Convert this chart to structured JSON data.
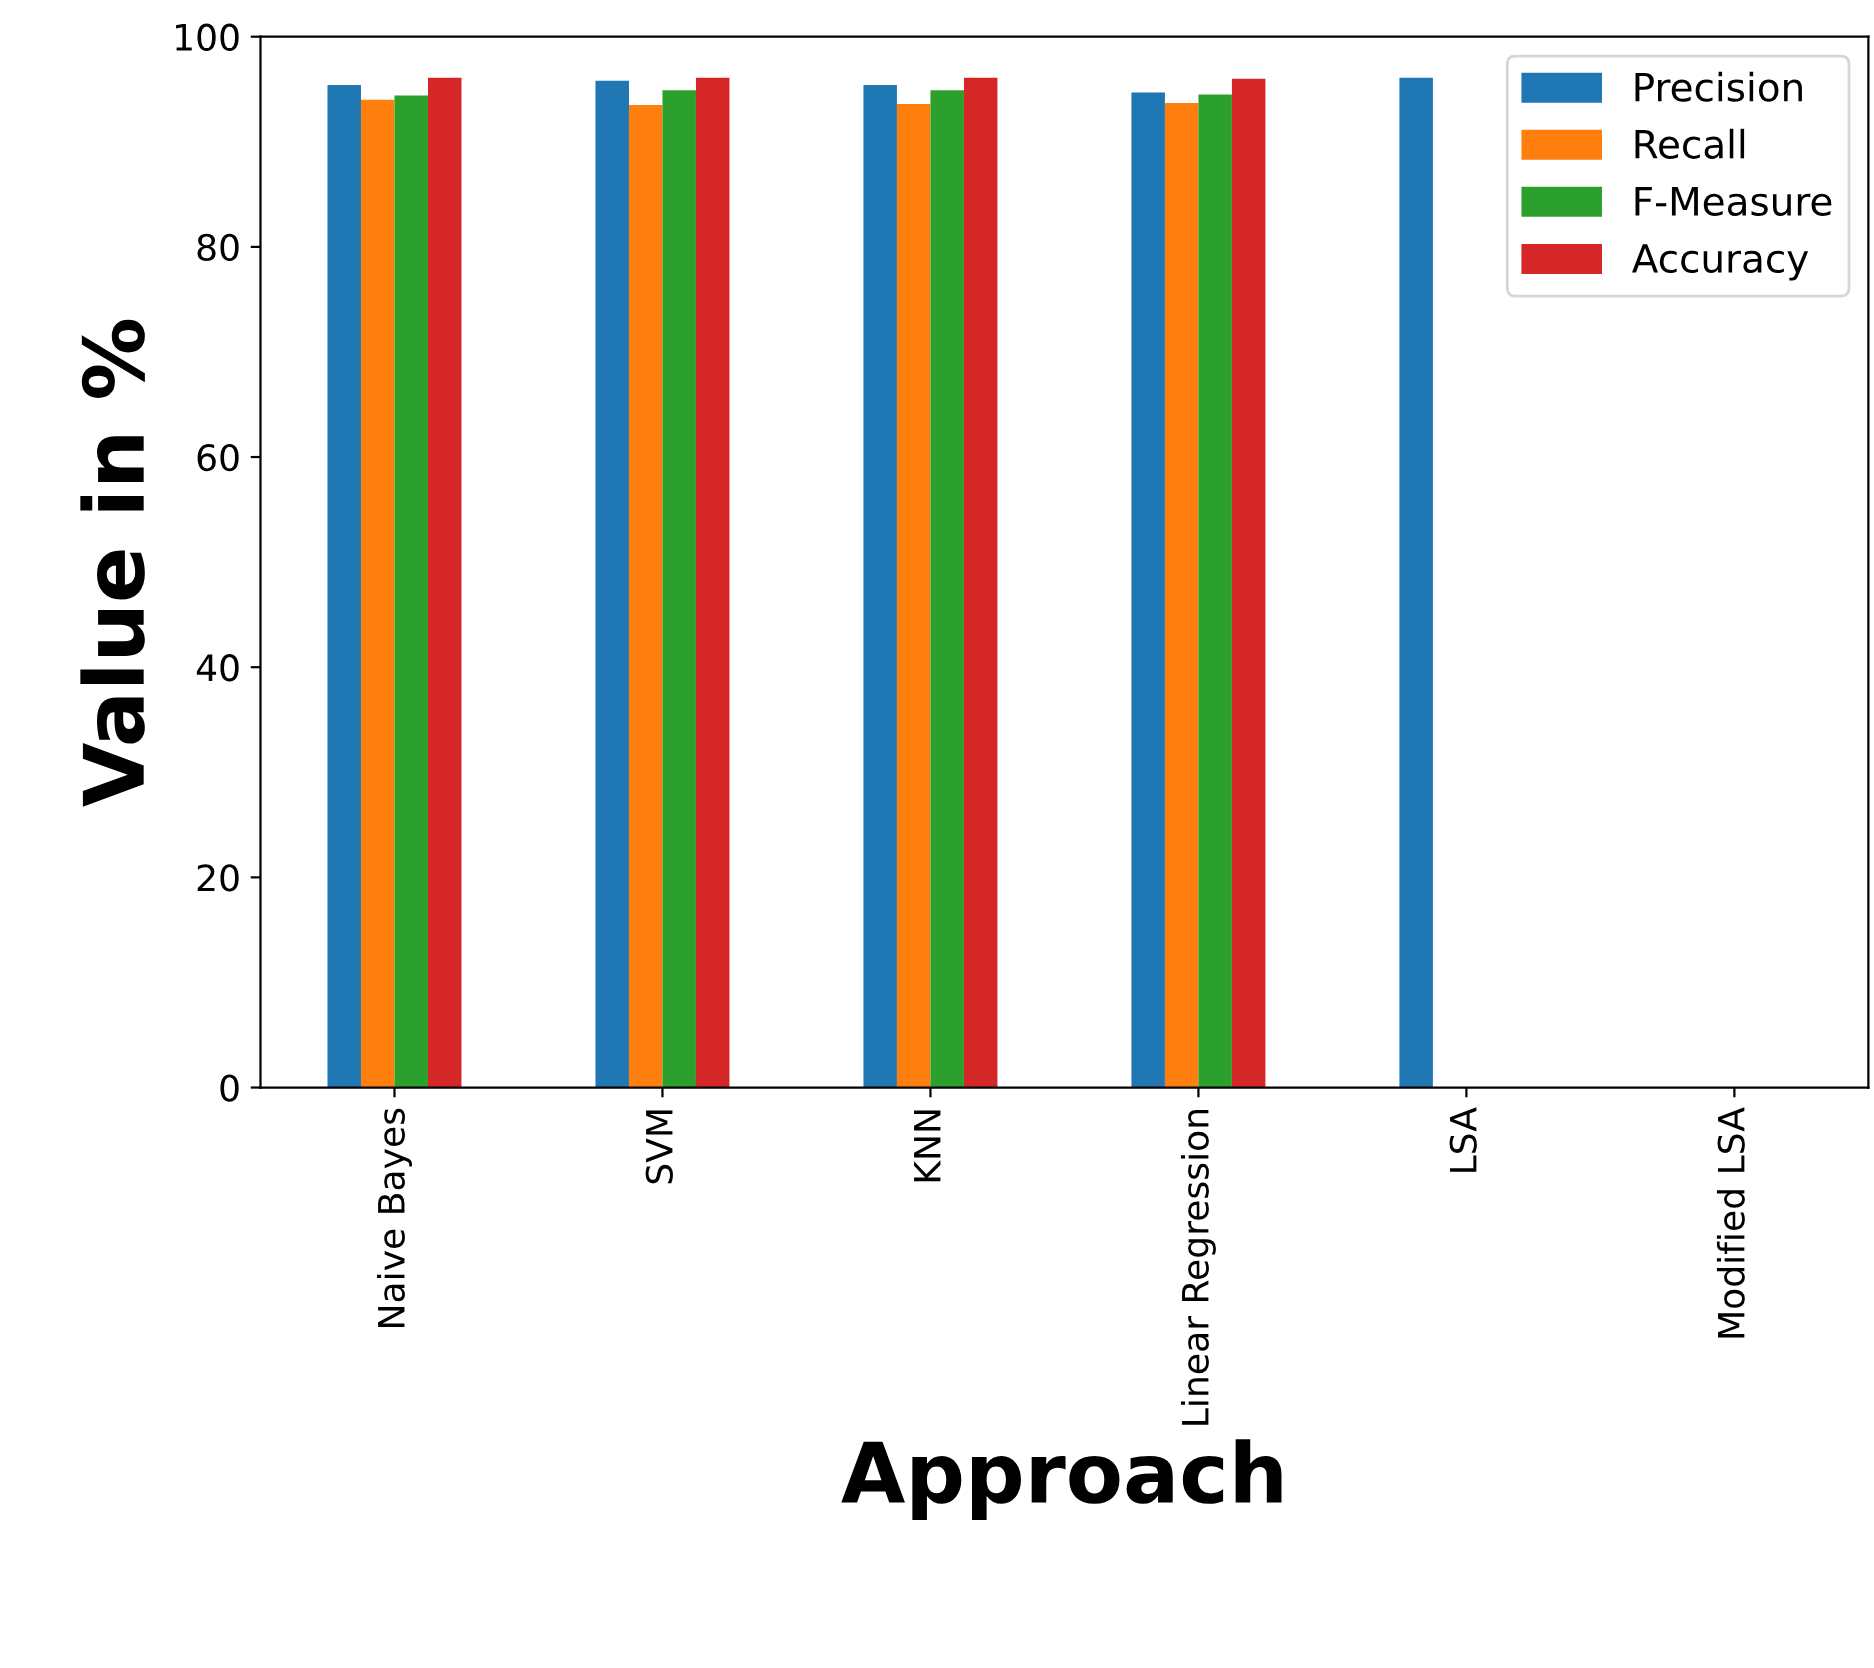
{
  "chart_data": {
    "type": "bar",
    "xlabel": "Approach",
    "ylabel": "Value in %",
    "categories": [
      "Naive Bayes",
      "SVM",
      "KNN",
      "Linear Regression",
      "LSA",
      "Modified LSA"
    ],
    "series": [
      {
        "name": "Precision",
        "color": "#1f77b4",
        "values": [
          95.4,
          95.8,
          95.4,
          94.7,
          96.1,
          null
        ]
      },
      {
        "name": "Recall",
        "color": "#ff7f0e",
        "values": [
          94.0,
          93.5,
          93.6,
          93.7,
          null,
          null
        ]
      },
      {
        "name": "F-Measure",
        "color": "#2ca02c",
        "values": [
          94.4,
          94.9,
          94.9,
          94.5,
          null,
          null
        ]
      },
      {
        "name": "Accuracy",
        "color": "#d62728",
        "values": [
          96.1,
          96.1,
          96.1,
          96.0,
          null,
          null
        ]
      }
    ],
    "ylim": [
      0,
      100
    ],
    "yticks": [
      0,
      20,
      40,
      60,
      80,
      100
    ],
    "grid": false,
    "legend": "top right"
  }
}
